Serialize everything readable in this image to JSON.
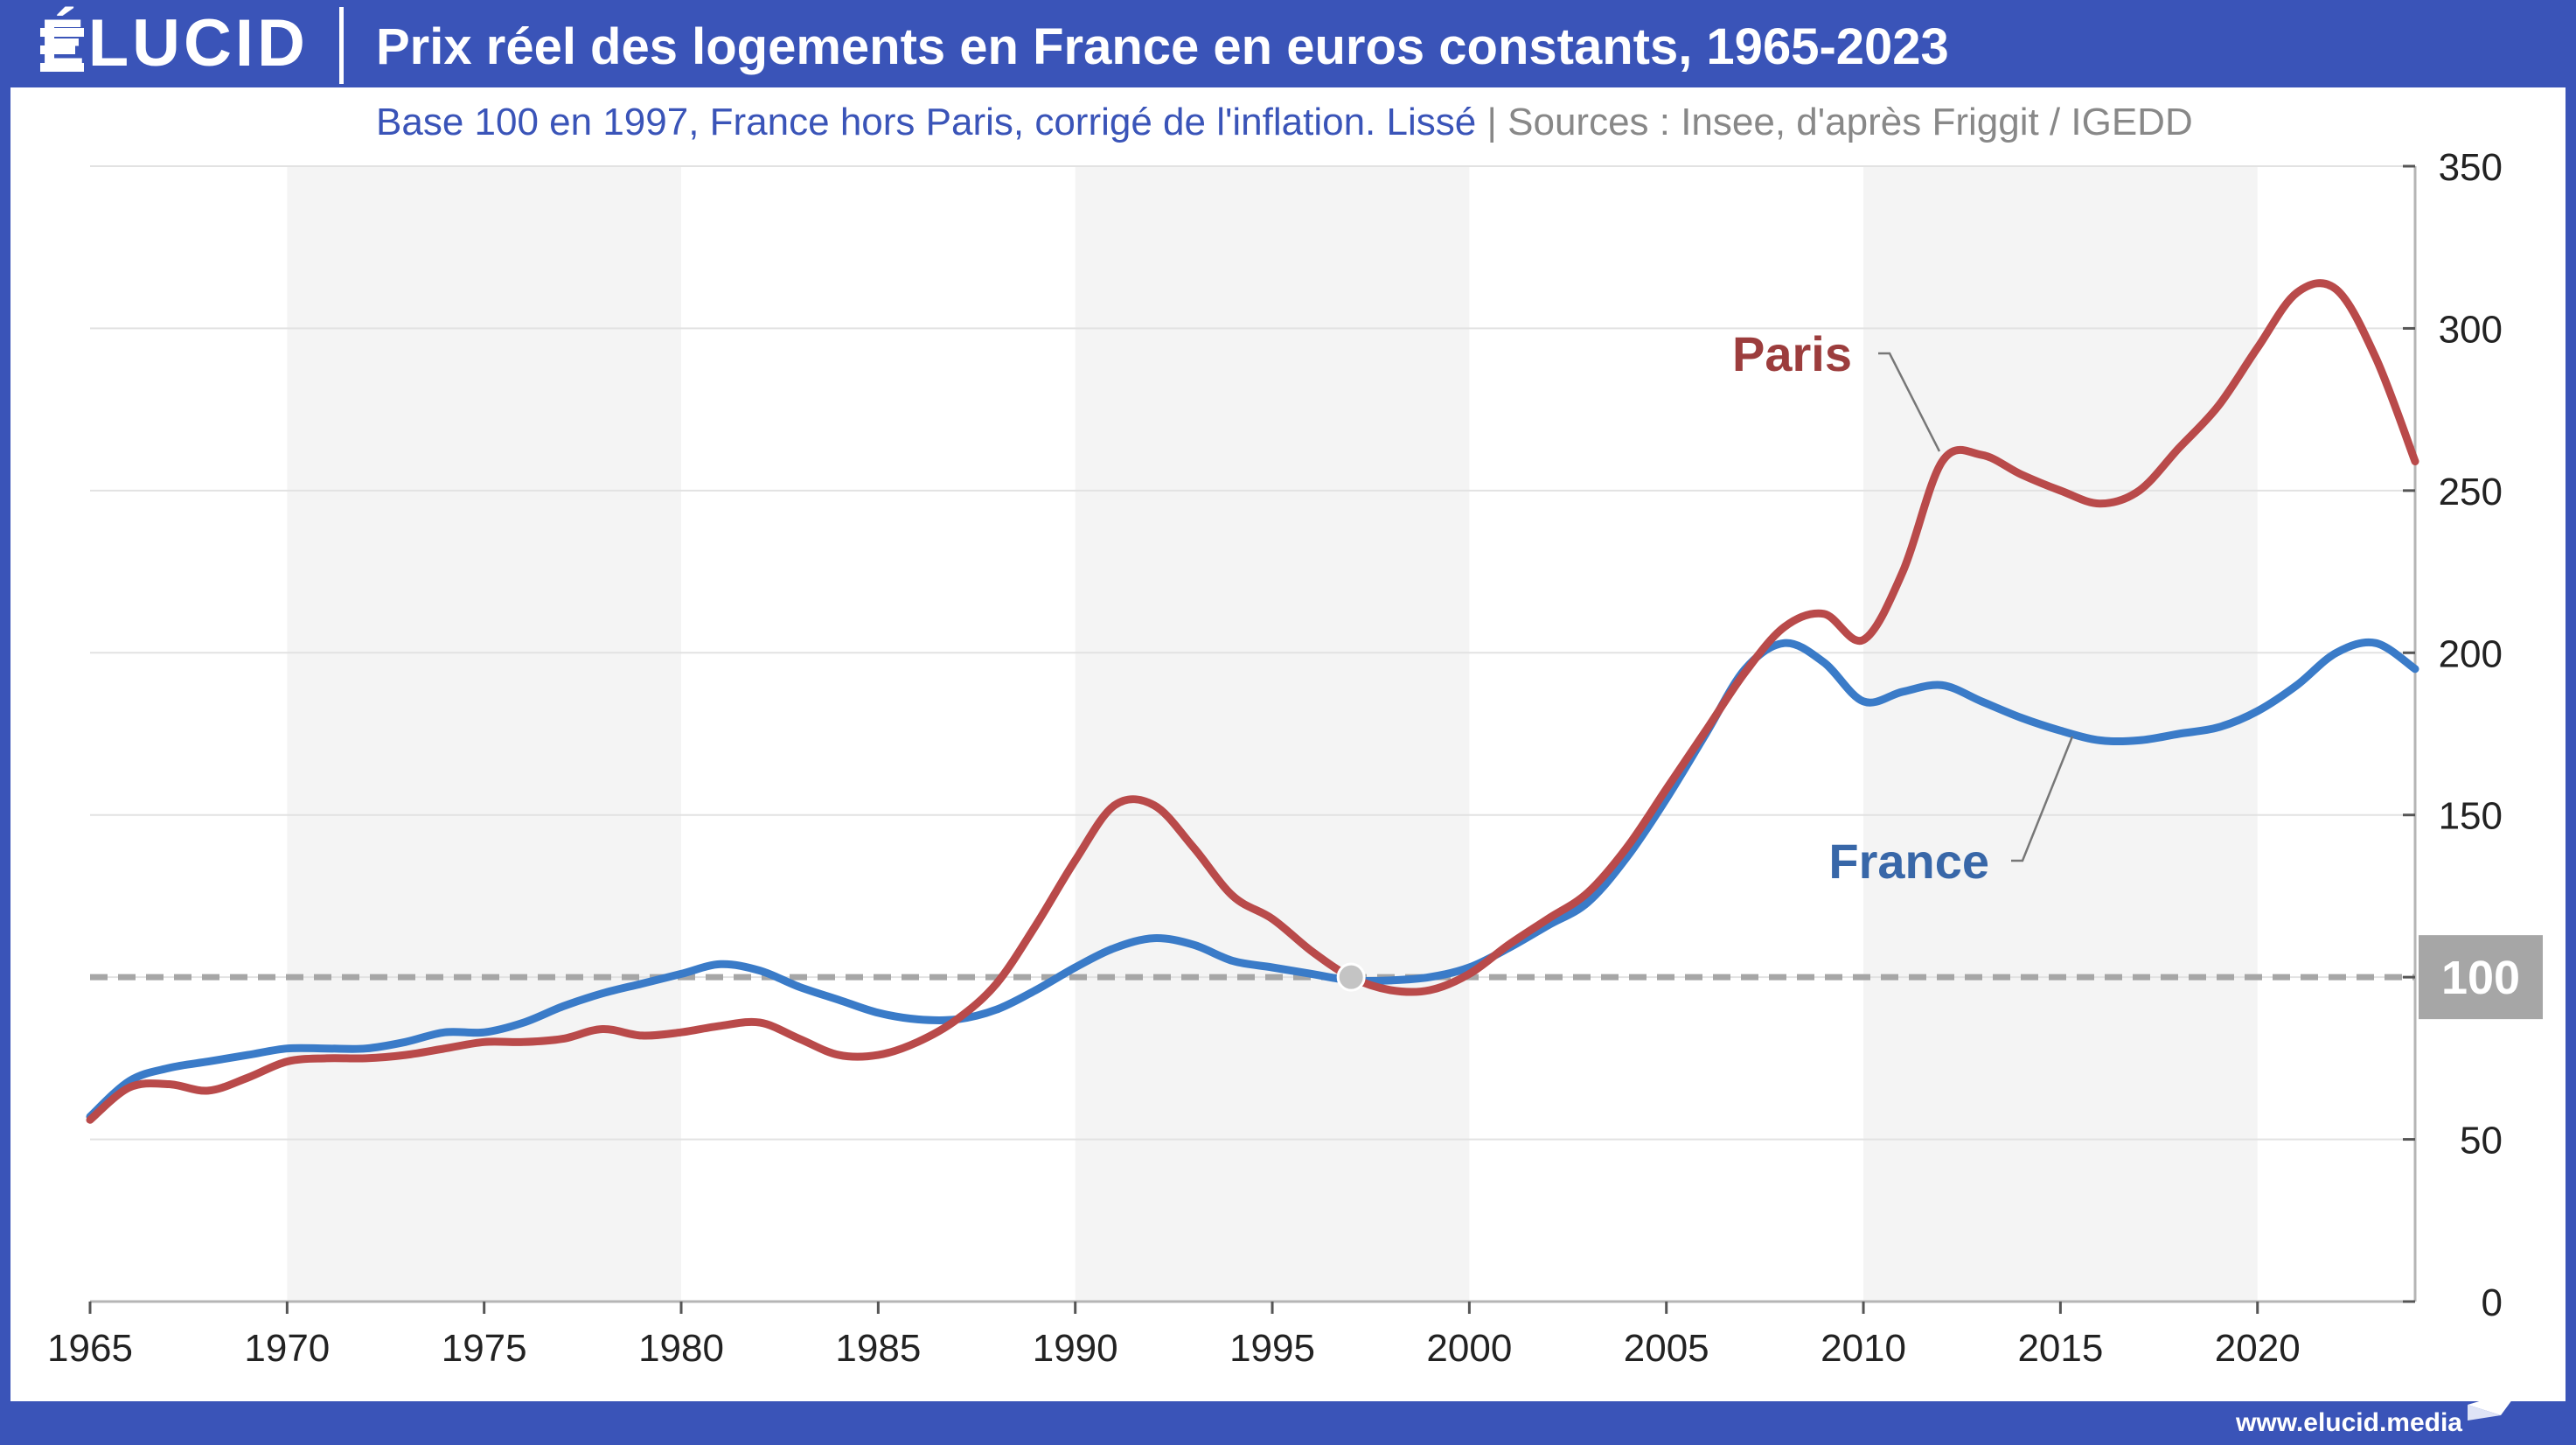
{
  "brand": {
    "logo": "ÉLUCID",
    "url": "www.elucid.media"
  },
  "header": {
    "title": "Prix réel des logements en France en euros constants, 1965-2023",
    "subtitle": "Base 100 en 1997, France hors Paris, corrigé de l'inflation. Lissé",
    "separator": "|",
    "sources": "Sources : Insee, d'après Friggit / IGEDD"
  },
  "colors": {
    "accent": "#3a54b8",
    "paris": "#b94a4a",
    "france": "#3a7bc8",
    "label_paris": "#9c3d3d",
    "label_france": "#3867a8",
    "reference": "#a6a6a6",
    "shading": "#f4f4f4"
  },
  "chart_data": {
    "type": "line",
    "title": "Prix réel des logements en France en euros constants, 1965-2023",
    "xlim": [
      1965,
      2024
    ],
    "ylim": [
      0,
      350
    ],
    "y_axis_position": "right",
    "x_ticks": [
      "1965",
      "1970",
      "1975",
      "1980",
      "1985",
      "1990",
      "1995",
      "2000",
      "2005",
      "2010",
      "2015",
      "2020"
    ],
    "y_ticks": [
      "0",
      "50",
      "100",
      "150",
      "200",
      "250",
      "300",
      "350"
    ],
    "shaded_decades": [
      [
        1970,
        1980
      ],
      [
        1990,
        2000
      ],
      [
        2010,
        2020
      ]
    ],
    "reference_line": {
      "value": 100,
      "label": "100",
      "style": "dashed"
    },
    "base_point": {
      "x": 1997,
      "y": 100
    },
    "series": [
      {
        "name": "Paris",
        "label": "Paris",
        "x": [
          1965,
          1966,
          1967,
          1968,
          1969,
          1970,
          1971,
          1972,
          1973,
          1974,
          1975,
          1976,
          1977,
          1978,
          1979,
          1980,
          1981,
          1982,
          1983,
          1984,
          1985,
          1986,
          1987,
          1988,
          1989,
          1990,
          1991,
          1992,
          1993,
          1994,
          1995,
          1996,
          1997,
          1998,
          1999,
          2000,
          2001,
          2002,
          2003,
          2004,
          2005,
          2006,
          2007,
          2008,
          2009,
          2010,
          2011,
          2012,
          2013,
          2014,
          2015,
          2016,
          2017,
          2018,
          2019,
          2020,
          2021,
          2022,
          2023,
          2024
        ],
        "y": [
          56,
          66,
          67,
          65,
          69,
          74,
          75,
          75,
          76,
          78,
          80,
          80,
          81,
          84,
          82,
          83,
          85,
          86,
          81,
          76,
          76,
          80,
          87,
          98,
          116,
          136,
          153,
          153,
          140,
          125,
          118,
          108,
          100,
          96,
          96,
          101,
          110,
          118,
          126,
          140,
          158,
          176,
          194,
          208,
          212,
          204,
          225,
          259,
          261,
          255,
          250,
          246,
          250,
          263,
          276,
          294,
          311,
          312,
          291,
          259
        ]
      },
      {
        "name": "France",
        "label": "France",
        "x": [
          1965,
          1966,
          1967,
          1968,
          1969,
          1970,
          1971,
          1972,
          1973,
          1974,
          1975,
          1976,
          1977,
          1978,
          1979,
          1980,
          1981,
          1982,
          1983,
          1984,
          1985,
          1986,
          1987,
          1988,
          1989,
          1990,
          1991,
          1992,
          1993,
          1994,
          1995,
          1996,
          1997,
          1998,
          1999,
          2000,
          2001,
          2002,
          2003,
          2004,
          2005,
          2006,
          2007,
          2008,
          2009,
          2010,
          2011,
          2012,
          2013,
          2014,
          2015,
          2016,
          2017,
          2018,
          2019,
          2020,
          2021,
          2022,
          2023,
          2024
        ],
        "y": [
          57,
          68,
          72,
          74,
          76,
          78,
          78,
          78,
          80,
          83,
          83,
          86,
          91,
          95,
          98,
          101,
          104,
          102,
          97,
          93,
          89,
          87,
          87,
          90,
          96,
          103,
          109,
          112,
          110,
          105,
          103,
          101,
          99,
          99,
          100,
          103,
          109,
          116,
          123,
          137,
          155,
          175,
          195,
          203,
          197,
          185,
          188,
          190,
          185,
          180,
          176,
          173,
          173,
          175,
          177,
          182,
          190,
          200,
          203,
          195
        ]
      }
    ]
  }
}
